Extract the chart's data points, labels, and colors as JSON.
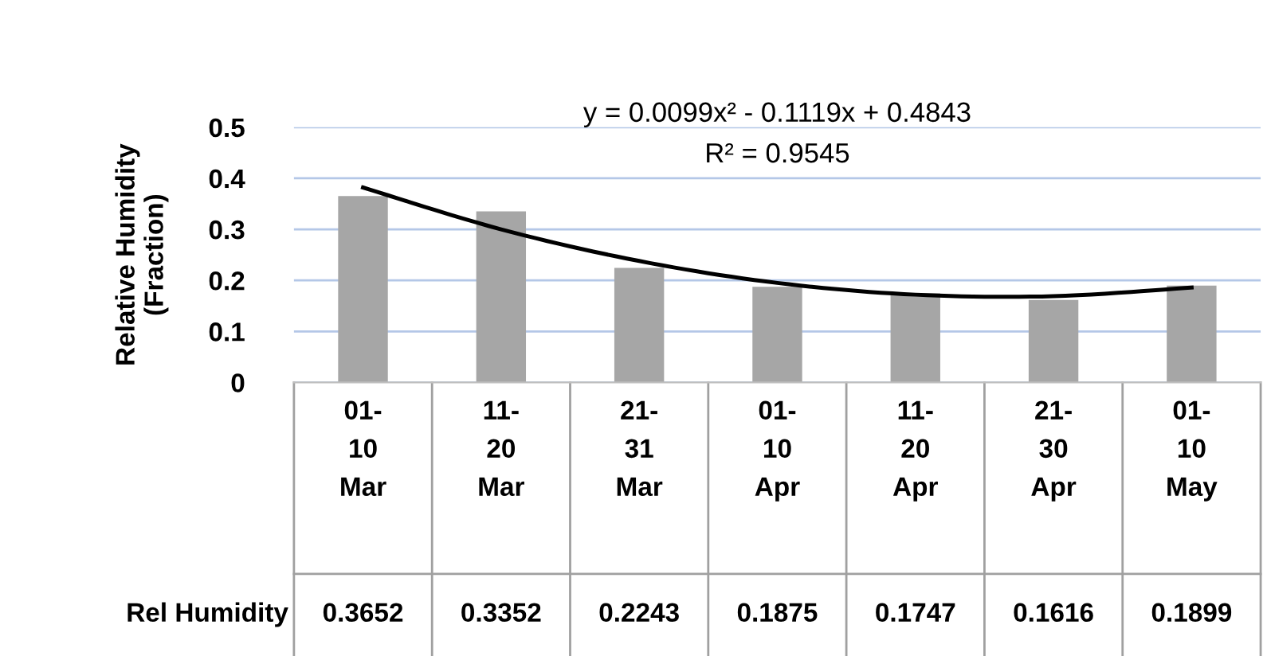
{
  "chart_data": {
    "type": "bar",
    "ylabel": "Relative Humidity\n(Fraction)",
    "categories": [
      "01-\n10\nMar",
      "11-\n20\nMar",
      "21-\n31\nMar",
      "01-\n10\nApr",
      "11-\n20\nApr",
      "21-\n30\nApr",
      "01-\n10\nMay"
    ],
    "series": [
      {
        "name": "Rel Humidity",
        "color": "#a6a6a6",
        "values": [
          0.3652,
          0.3352,
          0.2243,
          0.1875,
          0.1747,
          0.1616,
          0.1899
        ],
        "value_labels": [
          "0.3652",
          "0.3352",
          "0.2243",
          "0.1875",
          "0.1747",
          "0.1616",
          "0.1899"
        ]
      },
      {
        "type": "line",
        "color": "#000000",
        "values": [
          0.382,
          0.3,
          0.238,
          0.195,
          0.172,
          0.169,
          0.186
        ]
      }
    ],
    "annotations": [
      "y = 0.0099x² - 0.1119x + 0.4843",
      "R² = 0.9545"
    ],
    "ylim": [
      0,
      0.5
    ],
    "yticks": [
      0,
      0.1,
      0.2,
      0.3,
      0.4,
      0.5
    ],
    "grid": "y"
  }
}
